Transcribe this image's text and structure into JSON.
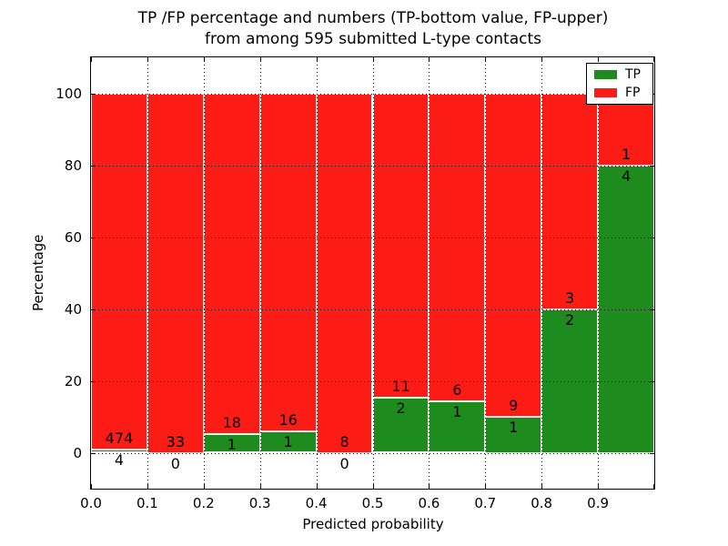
{
  "chart_data": {
    "type": "bar",
    "stacked": true,
    "title_line1": "TP /FP percentage and numbers (TP-bottom value, FP-upper)",
    "title_line2": "from among 595 submitted L-type contacts",
    "total_contacts": 595,
    "xlabel": "Predicted probability",
    "ylabel": "Percentage",
    "xlim": [
      0.0,
      1.0
    ],
    "ylim": [
      -10,
      110
    ],
    "bin_width": 0.1,
    "bin_starts": [
      0.0,
      0.1,
      0.2,
      0.3,
      0.4,
      0.5,
      0.6,
      0.7,
      0.8,
      0.9
    ],
    "xtick_labels": [
      "0.0",
      "0.1",
      "0.2",
      "0.3",
      "0.4",
      "0.5",
      "0.6",
      "0.7",
      "0.8",
      "0.9"
    ],
    "ytick_values": [
      0,
      20,
      40,
      60,
      80,
      100
    ],
    "ytick_labels": [
      "0",
      "20",
      "40",
      "60",
      "80",
      "100"
    ],
    "series": [
      {
        "name": "TP",
        "color": "#1e8b1e",
        "counts": [
          4,
          0,
          1,
          1,
          0,
          2,
          1,
          1,
          2,
          4
        ]
      },
      {
        "name": "FP",
        "color": "#fc1c15",
        "counts": [
          474,
          33,
          18,
          16,
          8,
          11,
          6,
          9,
          3,
          1
        ]
      }
    ],
    "tp_percent": [
      0.84,
      0.0,
      5.26,
      5.88,
      0.0,
      15.38,
      14.29,
      10.0,
      40.0,
      80.0
    ],
    "legend": {
      "location": "upper right",
      "entries": [
        "TP",
        "FP"
      ]
    },
    "grid": {
      "style": "dotted",
      "color": "#000000"
    },
    "annotation_rule": "FP count above segment boundary, TP count below"
  },
  "colors": {
    "background": "#ffffff",
    "axes": "#000000",
    "bar_edge": "#ffffff",
    "tp": "#1e8b1e",
    "fp": "#fc1c15"
  }
}
